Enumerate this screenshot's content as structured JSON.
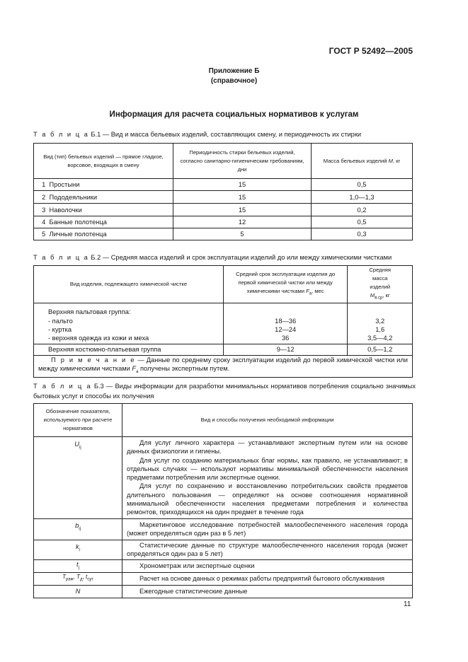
{
  "header": {
    "standard": "ГОСТ Р 52492—2005"
  },
  "appendix": {
    "label": "Приложение Б",
    "kind": "(справочное)"
  },
  "title": "Информация для расчета социальных нормативов к услугам",
  "table1": {
    "caption_prefix": "Т а б л и ц а",
    "caption": "Б.1 — Вид и масса бельевых изделий, составляющих смену, и периодичность их стирки",
    "headers": [
      "Вид (тип) бельевых изделий — прямое гладкое, ворсовое, входящих в смену",
      "Периодичность стирки бельевых изделий, согласно санитарно-гигиеническим требованиям, дни",
      "Масса бельевых изделий "
    ],
    "header_symbol": "M",
    "header_unit": ", кг",
    "rows": [
      {
        "n": "1",
        "name": "Простыни",
        "period": "15",
        "mass": "0,5"
      },
      {
        "n": "2",
        "name": "Пододеяльники",
        "period": "15",
        "mass": "1,0—1,3"
      },
      {
        "n": "3",
        "name": "Наволочки",
        "period": "15",
        "mass": "0,2"
      },
      {
        "n": "4",
        "name": "Банные полотенца",
        "period": "12",
        "mass": "0,5"
      },
      {
        "n": "5",
        "name": "Личные полотенца",
        "period": "5",
        "mass": "0,3"
      }
    ]
  },
  "table2": {
    "caption_prefix": "Т а б л и ц а",
    "caption": "Б.2 — Средняя масса изделий и срок эксплуатации изделий до или между химическими чистками",
    "headers": [
      "Вид изделия, подлежащего химической чистке",
      "Средний срок эксплуатации изделия до первой химической чистки или между химическими чистками ",
      "Средняя масса изделий "
    ],
    "h2_symbol": "F",
    "h2_sub": "а",
    "h2_unit": ", мес",
    "h3_symbol": "M",
    "h3_sub": "в.ср",
    "h3_unit": ", кг",
    "group": "Верхняя пальтовая группа:",
    "group_rows": [
      {
        "name": "- пальто",
        "period": "18—36",
        "mass": "3,2"
      },
      {
        "name": "- куртка",
        "period": "12—24",
        "mass": "1,6"
      },
      {
        "name": "- верхняя одежда из кожи и меха",
        "period": "36",
        "mass": "3,5—4,2"
      }
    ],
    "row": {
      "name": "Верхняя костюмно-платьевая группа",
      "period": "9—12",
      "mass": "0,5—1,2"
    },
    "note_prefix": "П р и м е ч а н и е",
    "note_a": " — Данные по среднему сроку эксплуатации изделий до первой химической чистки или между химическими чистками ",
    "note_symbol": "F",
    "note_sub": "а",
    "note_b": " получены экспертным путем."
  },
  "table3": {
    "caption_prefix": "Т а б л и ц а",
    "caption": "Б.3 — Виды информации для разработки минимальных нормативов потребления социально значимых бытовых услуг и способы их получения",
    "headers": [
      "Обозначение показателя, используемого при расчете нормативов",
      "Вид и способы получения необходимой информации"
    ],
    "u": {
      "sym": "U",
      "sub": "ij",
      "p1": "Для услуг личного характера — устанавливают экспертным путем или на основе данных физиологии и гигиены.",
      "p2": "Для услуг по созданию материальных благ нормы, как правило, не устанавливают; в отдельных случаях — используют нормативы минимальной обеспеченности населения предметами потребления или экспертные оценки.",
      "p3": "Для услуг по сохранению и восстановлению потребительских свойств предметов длительного пользования — определяют на основе соотношения нормативной минимальной обеспеченности населения предметами потребления и количества ремонтов, приходящихся на один предмет в течение года"
    },
    "b": {
      "sym": "b",
      "sub": "ij",
      "text": "Маркетинговое исследование потребностей малообеспеченного населения города (может определяться один раз в 5 лет)"
    },
    "k": {
      "sym": "k",
      "sub": "i",
      "text": "Статистические данные по структуре малообеспеченного населения города (может определяться один раз в 5 лет)"
    },
    "t": {
      "sym": "t",
      "sub": "j",
      "text": "Хронометраж или экспертные оценки"
    },
    "T": {
      "sym1": "T",
      "sub1": "раж",
      "sym2": "T",
      "sub2": "д",
      "sym3": "t",
      "sub3": "сут",
      "text": "Расчет на основе данных о режимах работы предприятий бытового обслуживания"
    },
    "N": {
      "sym": "N",
      "text": "Ежегодные статистические данные"
    }
  },
  "page_number": "11"
}
